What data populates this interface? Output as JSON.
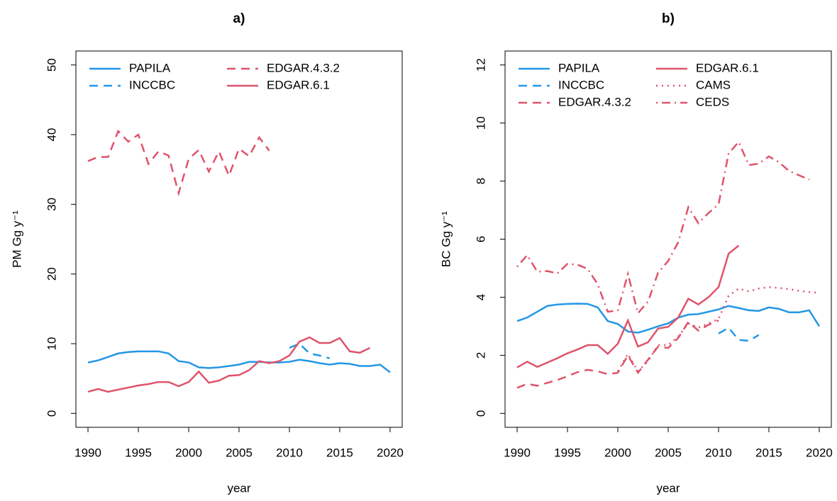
{
  "chart_data": [
    {
      "type": "line",
      "title": "a)",
      "xlabel": "year",
      "ylabel": "PM  Gg  y⁻¹",
      "x": [
        1990,
        1991,
        1992,
        1993,
        1994,
        1995,
        1996,
        1997,
        1998,
        1999,
        2000,
        2001,
        2002,
        2003,
        2004,
        2005,
        2006,
        2007,
        2008,
        2009,
        2010,
        2011,
        2012,
        2013,
        2014,
        2015,
        2016,
        2017,
        2018,
        2019,
        2020
      ],
      "xlim": [
        1988.8,
        2021.2
      ],
      "xticks": [
        1990,
        1995,
        2000,
        2005,
        2010,
        2015,
        2020
      ],
      "ylim": [
        -2,
        52
      ],
      "yticks": [
        0,
        10,
        20,
        30,
        40,
        50
      ],
      "legend": "top",
      "series": [
        {
          "name": "PAPILA",
          "color": "#2297E6",
          "linestyle": "solid",
          "values": [
            7.3,
            7.6,
            8.1,
            8.6,
            8.8,
            8.9,
            8.9,
            8.9,
            8.6,
            7.5,
            7.3,
            6.6,
            6.5,
            6.6,
            6.8,
            7.0,
            7.4,
            7.4,
            7.3,
            7.3,
            7.4,
            7.7,
            7.5,
            7.2,
            7.0,
            7.2,
            7.1,
            6.8,
            6.8,
            7.0,
            5.9
          ]
        },
        {
          "name": "INCCBC",
          "color": "#2297E6",
          "linestyle": "dashed",
          "values": [
            null,
            null,
            null,
            null,
            null,
            null,
            null,
            null,
            null,
            null,
            null,
            null,
            null,
            null,
            null,
            null,
            null,
            null,
            null,
            null,
            9.4,
            10.0,
            8.6,
            8.3,
            7.9,
            null,
            null,
            null,
            null,
            null,
            null
          ]
        },
        {
          "name": "EDGAR.4.3.2",
          "color": "#DF536B",
          "linestyle": "dashed",
          "values": [
            36.2,
            36.8,
            36.8,
            40.5,
            39.0,
            40.0,
            35.8,
            37.6,
            37.0,
            31.6,
            36.5,
            37.8,
            34.7,
            37.6,
            34.1,
            38.0,
            36.9,
            39.6,
            37.7,
            null,
            null,
            null,
            null,
            null,
            null,
            null,
            null,
            null,
            null,
            null,
            null
          ]
        },
        {
          "name": "EDGAR.6.1",
          "color": "#DF536B",
          "linestyle": "solid",
          "values": [
            3.1,
            3.5,
            3.1,
            3.4,
            3.7,
            4.0,
            4.2,
            4.5,
            4.5,
            3.9,
            4.5,
            6.0,
            4.4,
            4.7,
            5.4,
            5.5,
            6.2,
            7.5,
            7.2,
            7.5,
            8.3,
            10.3,
            10.9,
            10.1,
            10.1,
            10.8,
            8.9,
            8.7,
            9.4,
            null,
            null
          ]
        }
      ]
    },
    {
      "type": "line",
      "title": "b)",
      "xlabel": "year",
      "ylabel": "BC  Gg  y⁻¹",
      "x": [
        1990,
        1991,
        1992,
        1993,
        1994,
        1995,
        1996,
        1997,
        1998,
        1999,
        2000,
        2001,
        2002,
        2003,
        2004,
        2005,
        2006,
        2007,
        2008,
        2009,
        2010,
        2011,
        2012,
        2013,
        2014,
        2015,
        2016,
        2017,
        2018,
        2019,
        2020
      ],
      "xlim": [
        1988.8,
        2021.2
      ],
      "xticks": [
        1990,
        1995,
        2000,
        2005,
        2010,
        2015,
        2020
      ],
      "ylim": [
        -0.48,
        12.48
      ],
      "yticks": [
        0,
        2,
        4,
        6,
        8,
        10,
        12
      ],
      "legend": "top",
      "series": [
        {
          "name": "PAPILA",
          "color": "#2297E6",
          "linestyle": "solid",
          "values": [
            3.18,
            3.3,
            3.5,
            3.7,
            3.75,
            3.77,
            3.78,
            3.77,
            3.65,
            3.18,
            3.08,
            2.82,
            2.78,
            2.88,
            3.0,
            3.1,
            3.3,
            3.4,
            3.42,
            3.5,
            3.58,
            3.7,
            3.63,
            3.55,
            3.53,
            3.65,
            3.6,
            3.48,
            3.48,
            3.55,
            3.0
          ]
        },
        {
          "name": "INCCBC",
          "color": "#2297E6",
          "linestyle": "dashed",
          "values": [
            null,
            null,
            null,
            null,
            null,
            null,
            null,
            null,
            null,
            null,
            null,
            null,
            null,
            null,
            null,
            null,
            null,
            null,
            null,
            null,
            2.75,
            2.95,
            2.53,
            2.5,
            2.7,
            null,
            null,
            null,
            null,
            null,
            null
          ]
        },
        {
          "name": "EDGAR.4.3.2",
          "color": "#DF536B",
          "linestyle": "dashed",
          "values": [
            0.88,
            1.02,
            0.95,
            1.05,
            1.15,
            1.28,
            1.42,
            1.5,
            1.45,
            1.35,
            1.4,
            2.0,
            1.4,
            1.85,
            2.3,
            2.25,
            2.6,
            3.15,
            2.85,
            3.05,
            3.2,
            null,
            null,
            null,
            null,
            null,
            null,
            null,
            null,
            null,
            null
          ]
        },
        {
          "name": "EDGAR.6.1",
          "color": "#DF536B",
          "linestyle": "solid",
          "values": [
            1.58,
            1.78,
            1.6,
            1.75,
            1.9,
            2.07,
            2.2,
            2.35,
            2.35,
            2.05,
            2.4,
            3.2,
            2.3,
            2.45,
            2.92,
            2.98,
            3.3,
            3.95,
            3.75,
            4.0,
            4.35,
            5.5,
            5.78,
            null,
            null,
            null,
            null,
            null,
            null,
            null,
            null
          ]
        },
        {
          "name": "CAMS",
          "color": "#DF536B",
          "linestyle": "dotted",
          "values": [
            null,
            null,
            null,
            null,
            null,
            null,
            null,
            null,
            null,
            null,
            1.45,
            2.05,
            1.45,
            1.8,
            2.35,
            2.35,
            2.65,
            3.1,
            2.95,
            3.1,
            3.25,
            4.05,
            4.3,
            4.2,
            4.3,
            4.35,
            4.32,
            4.28,
            4.22,
            4.18,
            4.15
          ]
        },
        {
          "name": "CEDS",
          "color": "#DF536B",
          "linestyle": "dotdash",
          "values": [
            5.05,
            5.45,
            4.88,
            4.9,
            4.82,
            5.15,
            5.12,
            4.98,
            4.45,
            3.5,
            3.55,
            4.8,
            3.45,
            3.85,
            4.85,
            5.25,
            5.9,
            7.1,
            6.55,
            6.9,
            7.2,
            8.95,
            9.35,
            8.55,
            8.6,
            8.85,
            8.65,
            8.35,
            8.2,
            8.05,
            null
          ]
        }
      ]
    }
  ]
}
